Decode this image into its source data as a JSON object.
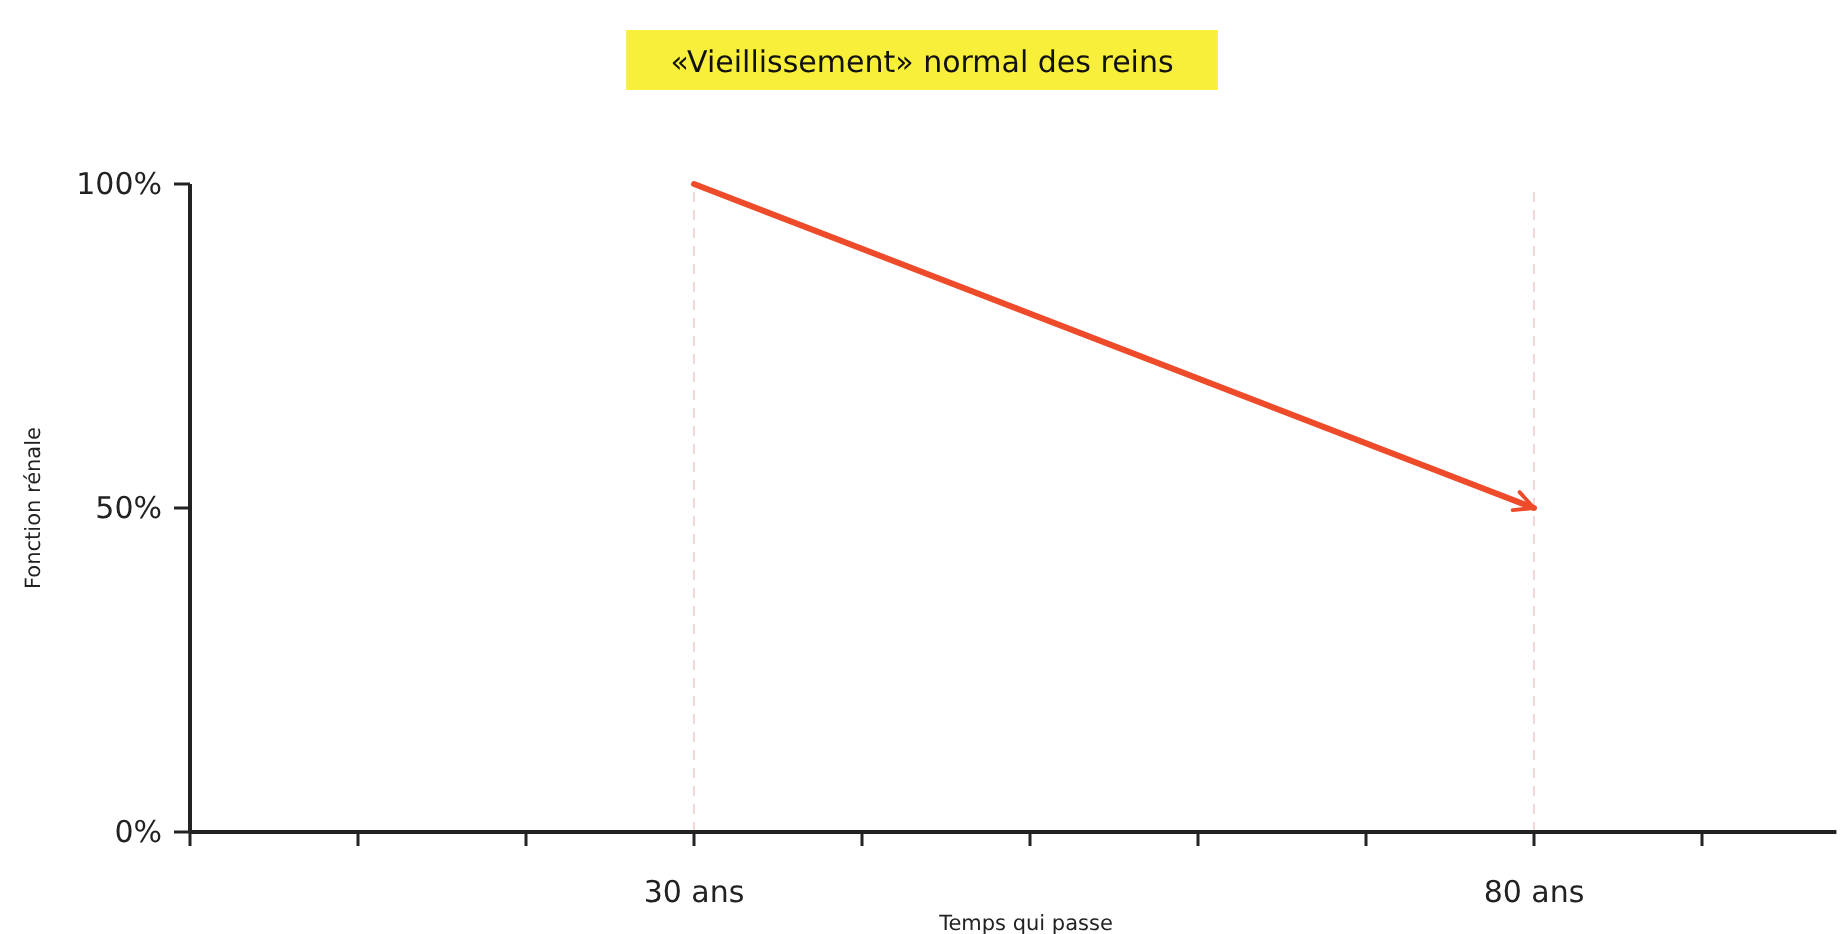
{
  "chart_data": {
    "type": "line",
    "title": "«Vieillissement» normal des reins",
    "xlabel": "Temps qui passe",
    "ylabel": "Fonction rénale",
    "x": [
      30,
      80
    ],
    "series": [
      {
        "color": "#ee4b2b",
        "values": [
          100,
          50
        ]
      }
    ],
    "xlim": [
      0,
      98
    ],
    "xticks": [
      {
        "value": 0,
        "label": null
      },
      {
        "value": 10,
        "label": null
      },
      {
        "value": 20,
        "label": null
      },
      {
        "value": 30,
        "label": "30 ans"
      },
      {
        "value": 40,
        "label": null
      },
      {
        "value": 50,
        "label": null
      },
      {
        "value": 60,
        "label": null
      },
      {
        "value": 70,
        "label": null
      },
      {
        "value": 80,
        "label": "80 ans"
      },
      {
        "value": 90,
        "label": null
      }
    ],
    "ylim": [
      0,
      100
    ],
    "yticks": [
      {
        "value": 0,
        "label": "0%"
      },
      {
        "value": 50,
        "label": "50%"
      },
      {
        "value": 100,
        "label": "100%"
      }
    ],
    "ref_lines": [
      {
        "axis": "x",
        "value": 30,
        "color": "#f0d8d8",
        "line_style": "dashed"
      },
      {
        "axis": "x",
        "value": 80,
        "color": "#f0d8d8",
        "line_style": "dashed"
      }
    ],
    "grid": false,
    "marker": "none",
    "line_style": "solid"
  }
}
